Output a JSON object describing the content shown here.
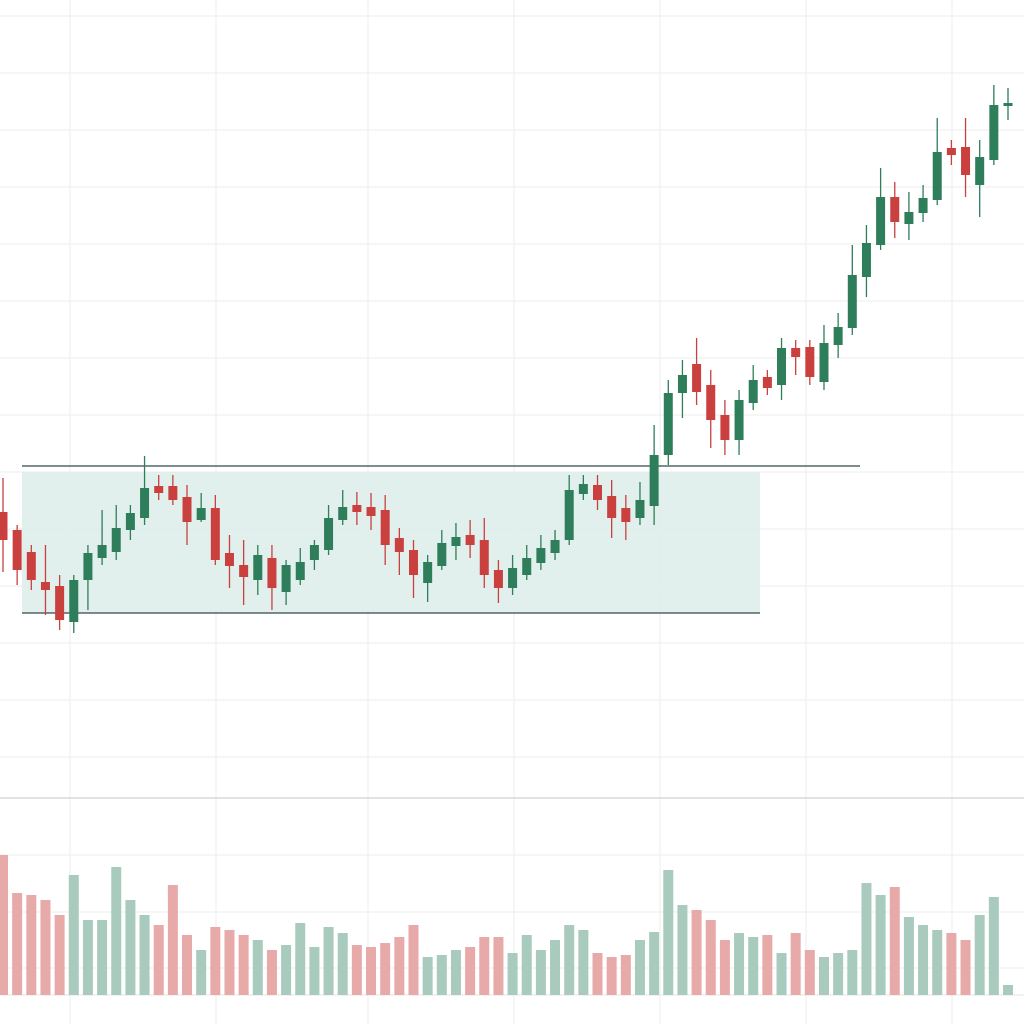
{
  "chart_data": {
    "type": "candlestick",
    "up_color": "#2e7d5b",
    "down_color": "#c9403f",
    "volume_up_color": "#a9cbbd",
    "volume_down_color": "#e8a9a9",
    "range_color": "#dcecea",
    "ylim": [
      0,
      800
    ],
    "yticks": [
      43,
      100,
      157,
      214,
      271,
      328,
      385,
      442,
      499,
      556,
      613,
      670,
      727,
      784
    ],
    "grid": true,
    "range": [
      187,
      328
    ],
    "resistance": 334,
    "open": [
      288,
      270,
      248,
      218,
      214,
      178,
      220,
      242,
      248,
      270,
      282,
      314,
      314,
      303,
      280,
      292,
      247,
      235,
      220,
      242,
      208,
      220,
      240,
      250,
      280,
      295,
      293,
      290,
      262,
      250,
      217,
      234,
      254,
      265,
      260,
      230,
      212,
      225,
      237,
      247,
      260,
      306,
      315,
      304,
      292,
      282,
      294,
      345,
      407,
      436,
      415,
      385,
      360,
      397,
      423,
      415,
      452,
      453,
      418,
      455,
      472,
      523,
      555,
      603,
      576,
      587,
      600,
      652,
      653,
      615,
      640,
      694
    ],
    "high": [
      322,
      275,
      255,
      255,
      225,
      225,
      255,
      290,
      295,
      295,
      344,
      325,
      325,
      315,
      307,
      305,
      265,
      260,
      255,
      255,
      240,
      252,
      260,
      295,
      310,
      308,
      307,
      305,
      272,
      260,
      245,
      270,
      277,
      280,
      282,
      240,
      245,
      255,
      265,
      270,
      325,
      325,
      325,
      320,
      305,
      318,
      375,
      420,
      440,
      462,
      430,
      400,
      410,
      435,
      430,
      462,
      460,
      460,
      475,
      487,
      555,
      575,
      632,
      618,
      608,
      615,
      682,
      660,
      682,
      660,
      715,
      712
    ],
    "low": [
      228,
      215,
      210,
      185,
      170,
      167,
      190,
      235,
      240,
      260,
      275,
      300,
      295,
      255,
      278,
      235,
      212,
      195,
      205,
      190,
      195,
      215,
      230,
      245,
      275,
      275,
      270,
      235,
      225,
      202,
      198,
      230,
      240,
      242,
      212,
      197,
      205,
      220,
      230,
      240,
      255,
      300,
      290,
      262,
      260,
      275,
      275,
      335,
      382,
      395,
      352,
      345,
      345,
      390,
      405,
      400,
      425,
      415,
      410,
      442,
      465,
      503,
      550,
      562,
      560,
      578,
      595,
      635,
      603,
      583,
      635,
      680
    ],
    "close": [
      260,
      230,
      220,
      210,
      180,
      220,
      247,
      255,
      272,
      287,
      312,
      307,
      300,
      278,
      292,
      240,
      234,
      223,
      245,
      212,
      235,
      238,
      255,
      282,
      293,
      288,
      284,
      255,
      248,
      225,
      238,
      257,
      263,
      255,
      225,
      212,
      232,
      242,
      252,
      260,
      310,
      316,
      300,
      282,
      278,
      300,
      345,
      407,
      425,
      408,
      380,
      360,
      400,
      420,
      412,
      452,
      443,
      423,
      457,
      473,
      525,
      557,
      603,
      578,
      588,
      602,
      648,
      645,
      625,
      643,
      695,
      697
    ],
    "volume_ylim": [
      0,
      195
    ],
    "volume_yticks": [
      27,
      83,
      140
    ],
    "volume": [
      140,
      102,
      100,
      95,
      80,
      120,
      75,
      75,
      128,
      95,
      80,
      70,
      110,
      60,
      45,
      68,
      65,
      60,
      55,
      45,
      50,
      72,
      48,
      68,
      62,
      50,
      48,
      52,
      58,
      70,
      38,
      40,
      45,
      48,
      58,
      58,
      42,
      60,
      45,
      55,
      70,
      65,
      42,
      38,
      40,
      55,
      63,
      125,
      90,
      85,
      75,
      55,
      62,
      58,
      60,
      42,
      62,
      45,
      38,
      42,
      45,
      112,
      100,
      108,
      78,
      70,
      65,
      62,
      55,
      80,
      98,
      10
    ]
  }
}
